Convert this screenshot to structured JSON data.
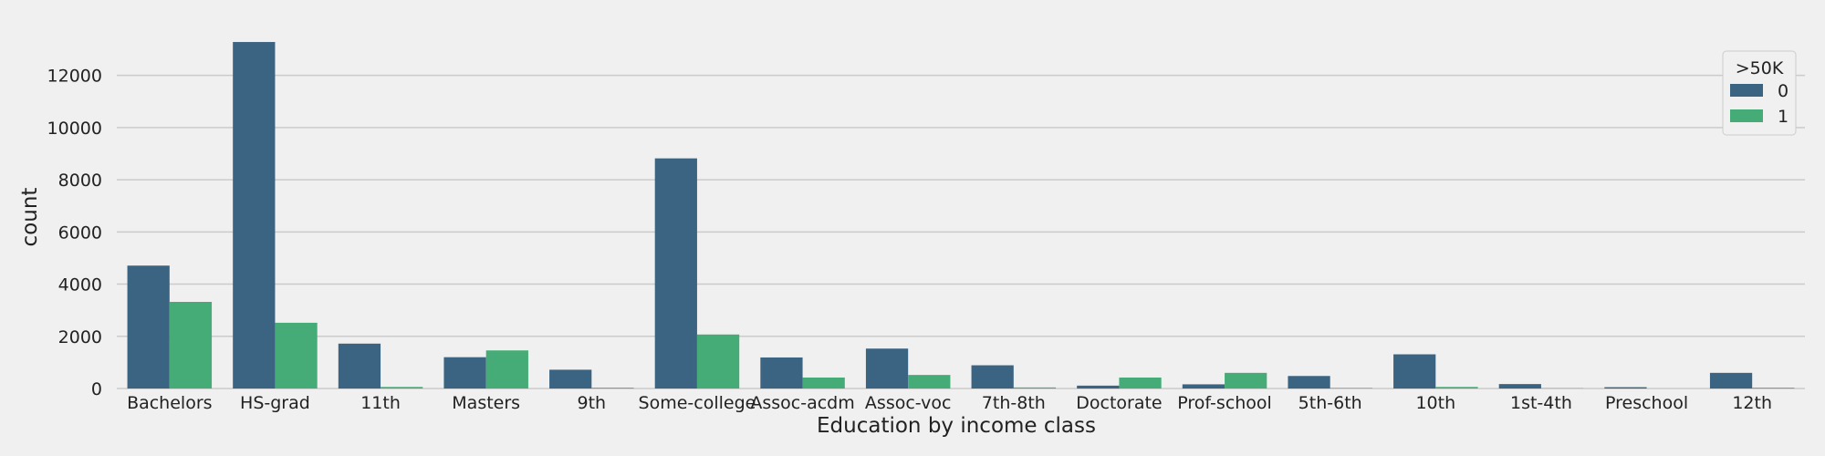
{
  "chart_data": {
    "type": "bar",
    "xlabel": "Education by income class",
    "ylabel": "count",
    "categories": [
      "Bachelors",
      "HS-grad",
      "11th",
      "Masters",
      "9th",
      "Some-college",
      "Assoc-acdm",
      "Assoc-voc",
      "7th-8th",
      "Doctorate",
      "Prof-school",
      "5th-6th",
      "10th",
      "1st-4th",
      "Preschool",
      "12th"
    ],
    "series": [
      {
        "name": "0",
        "color": "#3b6482",
        "values": [
          4710,
          13280,
          1720,
          1200,
          720,
          8820,
          1190,
          1530,
          890,
          110,
          160,
          480,
          1310,
          170,
          50,
          600
        ]
      },
      {
        "name": "1",
        "color": "#45ac77",
        "values": [
          3320,
          2520,
          60,
          1460,
          30,
          2070,
          420,
          520,
          40,
          420,
          600,
          20,
          60,
          10,
          0,
          30
        ]
      }
    ],
    "ylim": [
      0,
      14400
    ],
    "yticks": [
      0,
      2000,
      4000,
      6000,
      8000,
      10000,
      12000
    ],
    "grid": true,
    "legend": {
      "title": ">50K",
      "placement": "top-right"
    }
  }
}
